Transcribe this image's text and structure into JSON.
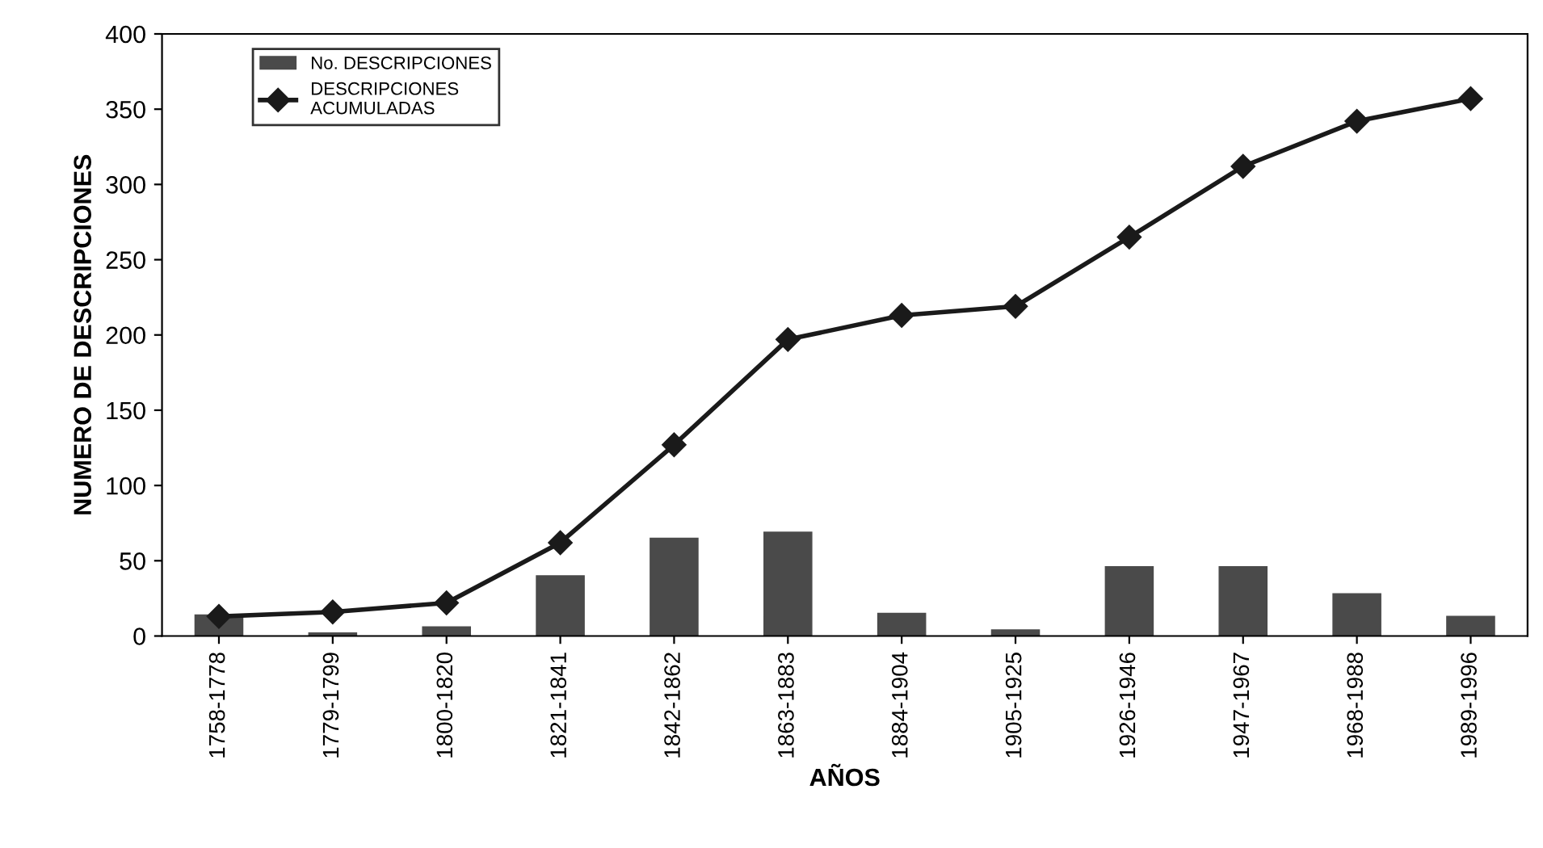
{
  "chart_data": {
    "type": "bar",
    "xlabel": "AÑOS",
    "ylabel": "NUMERO DE DESCRIPCIONES",
    "categories": [
      "1758-1778",
      "1779-1799",
      "1800-1820",
      "1821-1841",
      "1842-1862",
      "1863-1883",
      "1884-1904",
      "1905-1925",
      "1926-1946",
      "1947-1967",
      "1968-1988",
      "1989-1996"
    ],
    "series": [
      {
        "name": "No. DESCRIPCIONES",
        "color": "#4a4a4a",
        "values": [
          14,
          2,
          6,
          40,
          65,
          69,
          15,
          4,
          46,
          46,
          28,
          13
        ]
      },
      {
        "name": "DESCRIPCIONES\nACUMULADAS",
        "type": "line",
        "color": "#1a1a1a",
        "marker": "diamond",
        "line_style": "solid",
        "values": [
          13,
          16,
          22,
          62,
          127,
          197,
          213,
          219,
          265,
          312,
          342,
          357
        ]
      }
    ],
    "ylim": [
      0,
      400
    ],
    "yticks": [
      0,
      50,
      100,
      150,
      200,
      250,
      300,
      350,
      400
    ],
    "grid": false,
    "legend": "top left"
  }
}
